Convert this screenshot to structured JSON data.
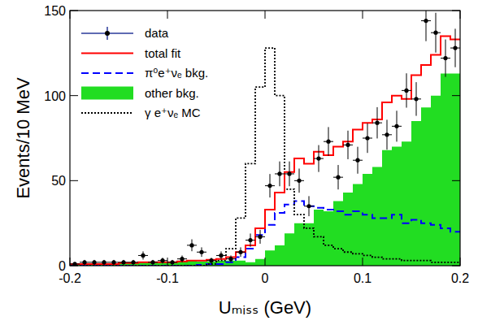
{
  "chart_data": {
    "type": "histogram",
    "x_label": "Uₘᵢₛₛ (GeV)",
    "y_label": "Events/10 MeV",
    "bins": [
      -0.2,
      -0.19,
      -0.18,
      -0.17,
      -0.16,
      -0.15,
      -0.14,
      -0.13,
      -0.12,
      -0.11,
      -0.1,
      -0.09,
      -0.08,
      -0.07,
      -0.06,
      -0.05,
      -0.04,
      -0.03,
      -0.02,
      -0.01,
      0,
      0.01,
      0.02,
      0.03,
      0.04,
      0.05,
      0.06,
      0.07,
      0.08,
      0.09,
      0.1,
      0.11,
      0.12,
      0.13,
      0.14,
      0.15,
      0.16,
      0.17,
      0.18,
      0.19,
      0.2
    ],
    "xlim": [
      -0.2,
      0.2
    ],
    "xticks": [
      -0.2,
      -0.1,
      0,
      0.1,
      0.2
    ],
    "ylim": [
      0,
      150
    ],
    "yticks": [
      0,
      50,
      100,
      150
    ],
    "legend": "upper left",
    "series": [
      {
        "name": "other bkg.",
        "type": "area",
        "color": "#22dd22",
        "values": [
          1,
          1,
          1,
          1,
          1,
          1.5,
          1.5,
          2,
          2,
          2,
          2,
          2.5,
          3,
          2.5,
          2.5,
          3,
          3,
          3,
          2,
          4,
          9,
          12,
          19,
          25,
          25,
          33,
          32,
          38,
          43,
          48,
          54,
          58,
          68,
          70,
          73,
          85,
          93,
          100,
          113,
          113
        ]
      },
      {
        "name": "π⁰e⁺νₑ bkg.",
        "type": "step",
        "color": "#0000ff",
        "line_style": "dashed",
        "values": [
          0,
          0,
          0,
          0,
          0,
          0,
          0,
          0,
          0,
          0,
          0,
          0,
          0,
          0.5,
          1,
          1,
          2,
          5,
          10,
          18,
          24,
          31,
          36,
          38,
          35,
          34,
          33,
          32,
          30,
          32,
          30,
          28,
          28,
          30,
          25,
          27,
          25,
          24,
          22,
          20
        ]
      },
      {
        "name": "γ e⁺νₑ MC",
        "type": "step",
        "color": "#000000",
        "line_style": "dotted",
        "values": [
          0,
          0,
          0,
          0,
          0,
          0,
          0,
          0,
          0,
          0,
          0,
          0,
          0,
          0,
          1,
          3,
          10,
          28,
          60,
          105,
          128,
          100,
          45,
          30,
          22,
          17,
          12,
          10,
          8,
          7,
          6,
          5,
          4,
          4,
          3,
          3,
          3,
          2,
          2,
          2
        ]
      },
      {
        "name": "total fit",
        "type": "step",
        "color": "#ff0000",
        "line_style": "solid",
        "values": [
          1,
          1,
          1,
          1,
          1,
          1.5,
          1.5,
          2,
          2,
          2,
          2,
          2.5,
          3,
          3,
          3.5,
          4,
          5,
          8,
          12,
          22,
          33,
          43,
          55,
          63,
          60,
          67,
          65,
          70,
          73,
          80,
          84,
          86,
          96,
          100,
          98,
          112,
          118,
          124,
          135,
          133
        ]
      },
      {
        "name": "data",
        "type": "scatter",
        "color": "#000000",
        "marker": "circle",
        "values": [
          1,
          2,
          2,
          2,
          2,
          2,
          2,
          6,
          2,
          3,
          2,
          4,
          12,
          8,
          3,
          6,
          4,
          8,
          15,
          17,
          47,
          54,
          54,
          50,
          35,
          63,
          73,
          52,
          71,
          62,
          75,
          84,
          77,
          82,
          103,
          98,
          144,
          137,
          122,
          128
        ],
        "errors": [
          1,
          1.4,
          1.4,
          1.4,
          1.4,
          1.4,
          1.4,
          2.4,
          1.4,
          1.7,
          1.4,
          2,
          3.5,
          2.8,
          1.7,
          2.4,
          2,
          2.8,
          3.9,
          4.1,
          6.9,
          7.3,
          7.3,
          7.1,
          5.9,
          7.9,
          8.5,
          7.2,
          8.4,
          7.9,
          8.7,
          9.2,
          8.8,
          9.1,
          10.1,
          9.9,
          12,
          11.7,
          11,
          11.3
        ]
      }
    ]
  }
}
